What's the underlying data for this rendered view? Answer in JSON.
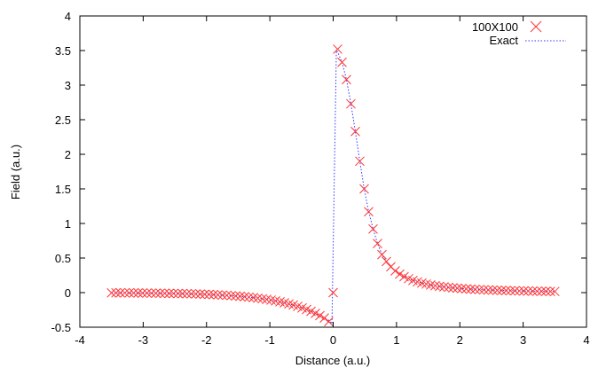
{
  "chart_data": {
    "type": "scatter",
    "title": "",
    "xlabel": "Distance (a.u.)",
    "ylabel": "Field (a.u.)",
    "xlim": [
      -4,
      4
    ],
    "ylim": [
      -0.5,
      4
    ],
    "xticks": [
      "-4",
      "-3",
      "-2",
      "-1",
      "0",
      "1",
      "2",
      "3",
      "4"
    ],
    "yticks": [
      "-0.5",
      "0",
      "0.5",
      "1",
      "1.5",
      "2",
      "2.5",
      "3",
      "3.5",
      "4"
    ],
    "grid": false,
    "legend_position": "top-right",
    "series": [
      {
        "name": "100X100",
        "style": "markers-x",
        "color": "#ff3333",
        "x": [
          -3.5,
          -3.43,
          -3.36,
          -3.29,
          -3.22,
          -3.15,
          -3.08,
          -3.01,
          -2.94,
          -2.87,
          -2.8,
          -2.73,
          -2.66,
          -2.59,
          -2.52,
          -2.45,
          -2.38,
          -2.31,
          -2.24,
          -2.17,
          -2.1,
          -2.03,
          -1.96,
          -1.89,
          -1.82,
          -1.75,
          -1.68,
          -1.61,
          -1.54,
          -1.47,
          -1.4,
          -1.33,
          -1.26,
          -1.19,
          -1.12,
          -1.05,
          -0.98,
          -0.91,
          -0.84,
          -0.77,
          -0.7,
          -0.63,
          -0.56,
          -0.49,
          -0.42,
          -0.35,
          -0.28,
          -0.21,
          -0.14,
          -0.07,
          0.0,
          0.07,
          0.14,
          0.21,
          0.28,
          0.35,
          0.42,
          0.49,
          0.56,
          0.63,
          0.7,
          0.77,
          0.84,
          0.91,
          0.98,
          1.05,
          1.12,
          1.19,
          1.26,
          1.33,
          1.4,
          1.47,
          1.54,
          1.61,
          1.68,
          1.75,
          1.82,
          1.89,
          1.96,
          2.03,
          2.1,
          2.17,
          2.24,
          2.31,
          2.38,
          2.45,
          2.52,
          2.59,
          2.66,
          2.73,
          2.8,
          2.87,
          2.94,
          3.01,
          3.08,
          3.15,
          3.22,
          3.29,
          3.36,
          3.43,
          3.5
        ],
        "y": [
          -0.003,
          -0.003,
          -0.003,
          -0.004,
          -0.004,
          -0.005,
          -0.005,
          -0.006,
          -0.006,
          -0.007,
          -0.008,
          -0.009,
          -0.01,
          -0.011,
          -0.012,
          -0.013,
          -0.014,
          -0.016,
          -0.017,
          -0.019,
          -0.021,
          -0.024,
          -0.026,
          -0.029,
          -0.032,
          -0.036,
          -0.039,
          -0.044,
          -0.048,
          -0.053,
          -0.059,
          -0.065,
          -0.072,
          -0.08,
          -0.089,
          -0.098,
          -0.108,
          -0.12,
          -0.133,
          -0.147,
          -0.163,
          -0.18,
          -0.199,
          -0.221,
          -0.244,
          -0.271,
          -0.3,
          -0.332,
          -0.367,
          -0.42,
          0.0,
          3.52,
          3.33,
          3.08,
          2.73,
          2.33,
          1.9,
          1.5,
          1.17,
          0.92,
          0.71,
          0.55,
          0.45,
          0.373,
          0.314,
          0.268,
          0.231,
          0.201,
          0.176,
          0.156,
          0.138,
          0.124,
          0.111,
          0.1,
          0.091,
          0.083,
          0.076,
          0.069,
          0.064,
          0.059,
          0.054,
          0.05,
          0.047,
          0.044,
          0.041,
          0.038,
          0.036,
          0.034,
          0.032,
          0.03,
          0.028,
          0.027,
          0.025,
          0.024,
          0.023,
          0.021,
          0.02,
          0.019,
          0.019,
          0.018,
          0.017
        ]
      },
      {
        "name": "Exact",
        "style": "dotted-line",
        "color": "#3333ff",
        "x": [
          -3.5,
          -3.01,
          -2.52,
          -2.03,
          -1.54,
          -1.26,
          -1.05,
          -0.84,
          -0.7,
          -0.56,
          -0.42,
          -0.28,
          -0.14,
          -0.07,
          -0.02,
          0.05,
          0.07,
          0.14,
          0.21,
          0.28,
          0.35,
          0.42,
          0.49,
          0.56,
          0.63,
          0.7,
          0.77,
          0.84,
          0.91,
          0.98,
          1.05,
          1.19,
          1.33,
          1.47,
          1.61,
          1.82,
          2.03,
          2.31,
          2.59,
          2.87,
          3.15,
          3.5
        ],
        "y": [
          -0.003,
          -0.006,
          -0.012,
          -0.024,
          -0.048,
          -0.072,
          -0.098,
          -0.133,
          -0.163,
          -0.199,
          -0.244,
          -0.3,
          -0.367,
          -0.4,
          -0.45,
          3.5,
          3.48,
          3.33,
          3.08,
          2.73,
          2.33,
          1.9,
          1.5,
          1.17,
          0.92,
          0.71,
          0.55,
          0.45,
          0.373,
          0.314,
          0.268,
          0.201,
          0.156,
          0.124,
          0.1,
          0.076,
          0.059,
          0.044,
          0.034,
          0.027,
          0.021,
          0.017
        ]
      }
    ]
  }
}
